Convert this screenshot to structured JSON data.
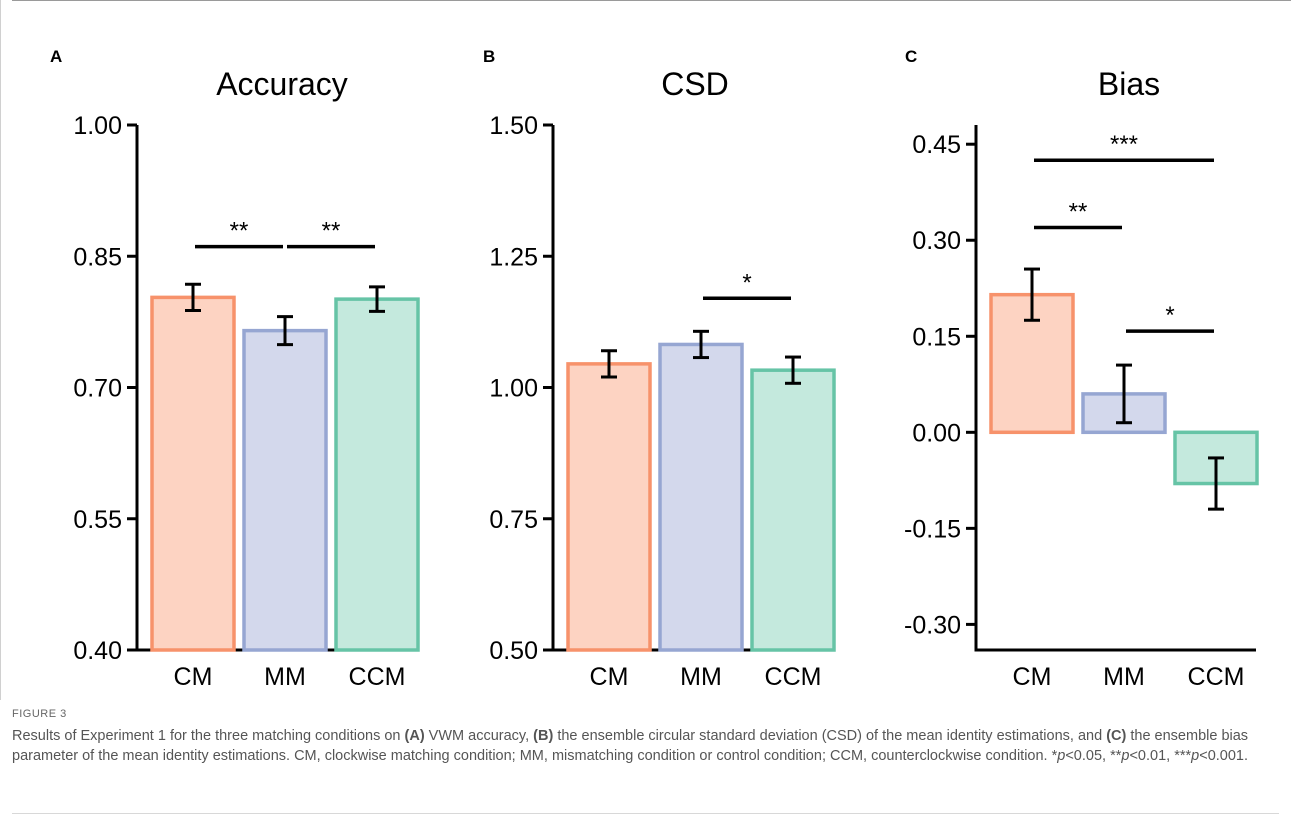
{
  "figure": {
    "label": "FIGURE 3",
    "caption_parts": [
      {
        "t": "Results of Experiment 1 for the three matching conditions on ",
        "s": "n"
      },
      {
        "t": "(A)",
        "s": "b"
      },
      {
        "t": " VWM accuracy, ",
        "s": "n"
      },
      {
        "t": "(B)",
        "s": "b"
      },
      {
        "t": " the ensemble circular standard deviation (CSD) of the mean identity estimations, and ",
        "s": "n"
      },
      {
        "t": "(C)",
        "s": "b"
      },
      {
        "t": " the ensemble bias parameter of the mean identity estimations. CM, clockwise matching condition; MM, mismatching condition or control condition; CCM, counterclockwise condition. *",
        "s": "n"
      },
      {
        "t": "p",
        "s": "i"
      },
      {
        "t": "<0.05, **",
        "s": "n"
      },
      {
        "t": "p",
        "s": "i"
      },
      {
        "t": "<0.01, ***",
        "s": "n"
      },
      {
        "t": "p",
        "s": "i"
      },
      {
        "t": "<0.001.",
        "s": "n"
      }
    ]
  },
  "colors": {
    "CM": {
      "fill": "#fdd3c2",
      "stroke": "#f7926b"
    },
    "MM": {
      "fill": "#d3d8ec",
      "stroke": "#96a6d2"
    },
    "CCM": {
      "fill": "#c4e9dd",
      "stroke": "#66c4a6"
    }
  },
  "chart_data": [
    {
      "panel": "A",
      "type": "bar",
      "title": "Accuracy",
      "categories": [
        "CM",
        "MM",
        "CCM"
      ],
      "values": [
        0.803,
        0.765,
        0.801
      ],
      "errors": [
        0.015,
        0.016,
        0.014
      ],
      "ylim": [
        0.4,
        1.0
      ],
      "yticks": [
        0.4,
        0.55,
        0.7,
        0.85,
        1.0
      ],
      "ytick_labels": [
        "0.40",
        "0.55",
        "0.70",
        "0.85",
        "1.00"
      ],
      "significance": [
        {
          "from": 0,
          "to": 1,
          "y": 0.861,
          "label": "**"
        },
        {
          "from": 1,
          "to": 2,
          "y": 0.861,
          "label": "**"
        }
      ]
    },
    {
      "panel": "B",
      "type": "bar",
      "title": "CSD",
      "categories": [
        "CM",
        "MM",
        "CCM"
      ],
      "values": [
        1.045,
        1.082,
        1.033
      ],
      "errors": [
        0.025,
        0.025,
        0.025
      ],
      "ylim": [
        0.5,
        1.5
      ],
      "yticks": [
        0.5,
        0.75,
        1.0,
        1.25,
        1.5
      ],
      "ytick_labels": [
        "0.50",
        "0.75",
        "1.00",
        "1.25",
        "1.50"
      ],
      "significance": [
        {
          "from": 1,
          "to": 2,
          "y": 1.17,
          "label": "*"
        }
      ]
    },
    {
      "panel": "C",
      "type": "bar",
      "title": "Bias",
      "categories": [
        "CM",
        "MM",
        "CCM"
      ],
      "values": [
        0.215,
        0.06,
        -0.08
      ],
      "errors": [
        0.04,
        0.045,
        0.04
      ],
      "ylim": [
        -0.34,
        0.48
      ],
      "yticks": [
        -0.3,
        -0.15,
        0.0,
        0.15,
        0.3,
        0.45
      ],
      "ytick_labels": [
        "-0.30",
        "-0.15",
        "0.00",
        "0.15",
        "0.30",
        "0.45"
      ],
      "significance": [
        {
          "from": 0,
          "to": 1,
          "y": 0.32,
          "label": "**"
        },
        {
          "from": 0,
          "to": 2,
          "y": 0.425,
          "label": "***"
        },
        {
          "from": 1,
          "to": 2,
          "y": 0.158,
          "label": "*"
        }
      ]
    }
  ]
}
